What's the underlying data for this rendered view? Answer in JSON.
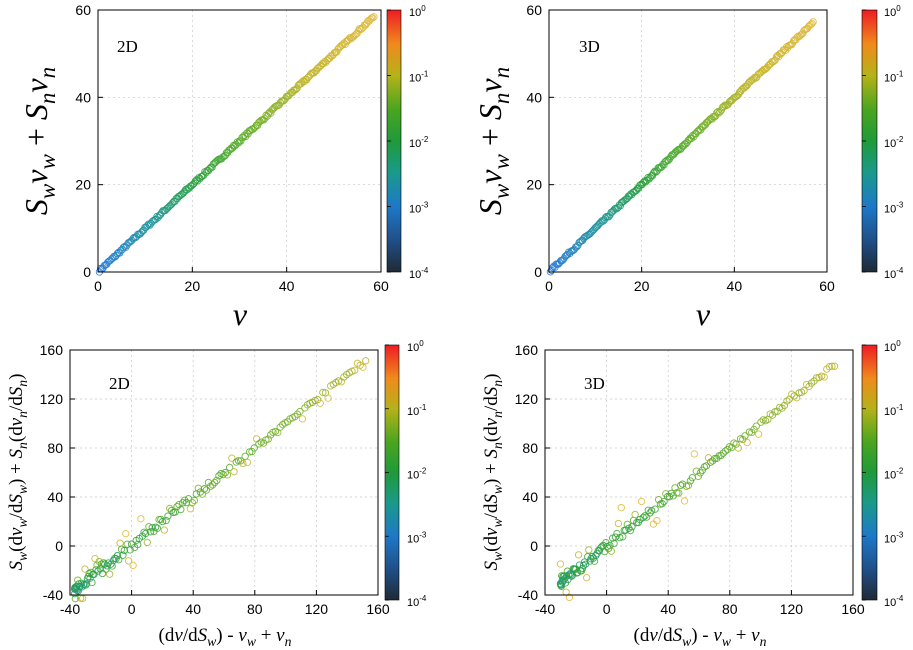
{
  "chart_data": [
    {
      "type": "scatter",
      "panel_label": "2D",
      "xlabel": "v",
      "ylabel": "S_w v_w + S_n v_n",
      "xlim": [
        0,
        60
      ],
      "ylim": [
        0,
        60
      ],
      "xticks": [
        "0",
        "20",
        "40",
        "60"
      ],
      "yticks": [
        "0",
        "20",
        "40",
        "60"
      ],
      "colorbar": {
        "scale": "log",
        "range": [
          0.0001,
          1
        ],
        "ticks": [
          "10-4",
          "10-3",
          "10-2",
          "10-1",
          "100"
        ]
      },
      "series": [
        {
          "name": "points",
          "x_range": [
            0.3,
            58.5
          ],
          "trend": "y = x"
        }
      ]
    },
    {
      "type": "scatter",
      "panel_label": "3D",
      "xlabel": "v",
      "ylabel": "S_w v_w + S_n v_n",
      "xlim": [
        0,
        60
      ],
      "ylim": [
        0,
        60
      ],
      "xticks": [
        "0",
        "20",
        "40",
        "60"
      ],
      "yticks": [
        "0",
        "20",
        "40",
        "60"
      ],
      "colorbar": {
        "scale": "log",
        "range": [
          0.0001,
          1
        ],
        "ticks": [
          "10-4",
          "10-3",
          "10-2",
          "10-1",
          "100"
        ]
      },
      "series": [
        {
          "name": "points",
          "x_range": [
            0.3,
            57
          ],
          "trend": "y = x"
        }
      ]
    },
    {
      "type": "scatter",
      "panel_label": "2D",
      "xlabel": "(dv/dS_w) - v_w + v_n",
      "ylabel": "S_w(dv_w/dS_w) + S_n(dv_n/dS_n)",
      "xlim": [
        -40,
        160
      ],
      "ylim": [
        -40,
        160
      ],
      "xticks": [
        "-40",
        "0",
        "40",
        "80",
        "120",
        "160"
      ],
      "yticks": [
        "-40",
        "0",
        "40",
        "80",
        "120",
        "160"
      ],
      "colorbar": {
        "scale": "log",
        "range": [
          0.0001,
          1
        ],
        "ticks": [
          "10-4",
          "10-3",
          "10-2",
          "10-1",
          "100"
        ]
      },
      "series": [
        {
          "name": "points",
          "x_range": [
            -37,
            152
          ],
          "trend": "y = x with scatter"
        }
      ]
    },
    {
      "type": "scatter",
      "panel_label": "3D",
      "xlabel": "(dv/dS_w) - v_w + v_n",
      "ylabel": "S_w(dv_w/dS_w) + S_n(dv_n/dS_n)",
      "xlim": [
        -40,
        160
      ],
      "ylim": [
        -40,
        160
      ],
      "xticks": [
        "-40",
        "0",
        "40",
        "80",
        "120",
        "160"
      ],
      "yticks": [
        "-40",
        "0",
        "40",
        "80",
        "120",
        "160"
      ],
      "colorbar": {
        "scale": "log",
        "range": [
          0.0001,
          1
        ],
        "ticks": [
          "10-4",
          "10-3",
          "10-2",
          "10-1",
          "100"
        ]
      },
      "series": [
        {
          "name": "points",
          "x_range": [
            -30,
            148
          ],
          "trend": "y = x with scatter"
        }
      ]
    }
  ],
  "text": {
    "panel_a": "2D",
    "panel_b": "3D",
    "panel_c": "2D",
    "panel_d": "3D",
    "xlabel_top": "v",
    "sym_S": "S",
    "sym_v": "v",
    "sub_w": "w",
    "sub_n": "n",
    "plus": " + ",
    "minus": " - ",
    "open": "(",
    "close": ")",
    "slash": "/",
    "dv": "dv",
    "d": "d",
    "dS": "dS"
  }
}
